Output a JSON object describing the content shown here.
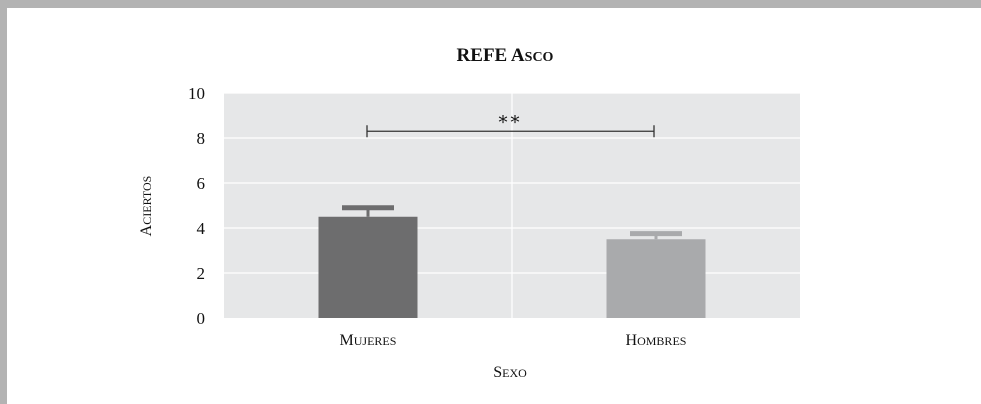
{
  "chart_data": {
    "type": "bar",
    "title": "REFE Asco",
    "xlabel": "Sexo",
    "ylabel": "Aciertos",
    "categories": [
      "Mujeres",
      "Hombres"
    ],
    "values": [
      4.5,
      3.5
    ],
    "error_upper": [
      4.9,
      3.75
    ],
    "ylim": [
      0,
      10
    ],
    "yticks": [
      0,
      2,
      4,
      6,
      8,
      10
    ],
    "grid": true,
    "legend": "none",
    "bar_colors": [
      "#6d6d6e",
      "#a9aaac"
    ],
    "plot_background": "#e6e7e8",
    "significance": {
      "label": "**",
      "from_category": 0,
      "to_category": 1,
      "y": 8.3
    }
  }
}
